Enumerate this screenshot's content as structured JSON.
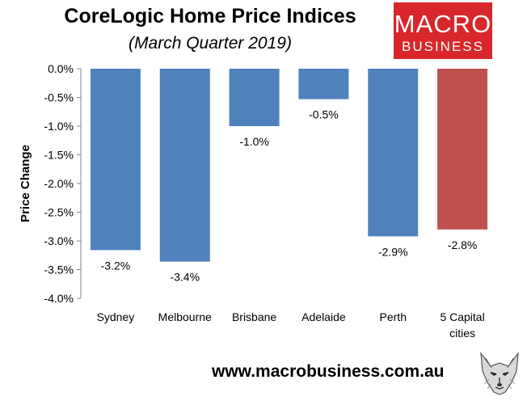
{
  "header": {
    "title": "CoreLogic Home Price Indices",
    "subtitle": "(March Quarter 2019)"
  },
  "logo": {
    "line1": "MACRO",
    "line2": "BUSINESS",
    "color": "#d7272b"
  },
  "footer": {
    "url": "www.macrobusiness.com.au"
  },
  "chart_data": {
    "type": "bar",
    "title": "CoreLogic Home Price Indices",
    "subtitle": "(March Quarter 2019)",
    "xlabel": "",
    "ylabel": "Price Change",
    "ylim": [
      -4.0,
      0.0
    ],
    "yticks": [
      "0.0%",
      "-0.5%",
      "-1.0%",
      "-1.5%",
      "-2.0%",
      "-2.5%",
      "-3.0%",
      "-3.5%",
      "-4.0%"
    ],
    "ytick_values": [
      0,
      -0.5,
      -1.0,
      -1.5,
      -2.0,
      -2.5,
      -3.0,
      -3.5,
      -4.0
    ],
    "grid": false,
    "categories": [
      "Sydney",
      "Melbourne",
      "Brisbane",
      "Adelaide",
      "Perth",
      "5 Capital cities"
    ],
    "values": [
      -3.16,
      -3.36,
      -1.0,
      -0.53,
      -2.92,
      -2.8
    ],
    "data_labels": [
      "-3.2%",
      "-3.4%",
      "-1.0%",
      "-0.5%",
      "-2.9%",
      "-2.8%"
    ],
    "colors": [
      "#4f81bd",
      "#4f81bd",
      "#4f81bd",
      "#4f81bd",
      "#4f81bd",
      "#c0504d"
    ]
  }
}
